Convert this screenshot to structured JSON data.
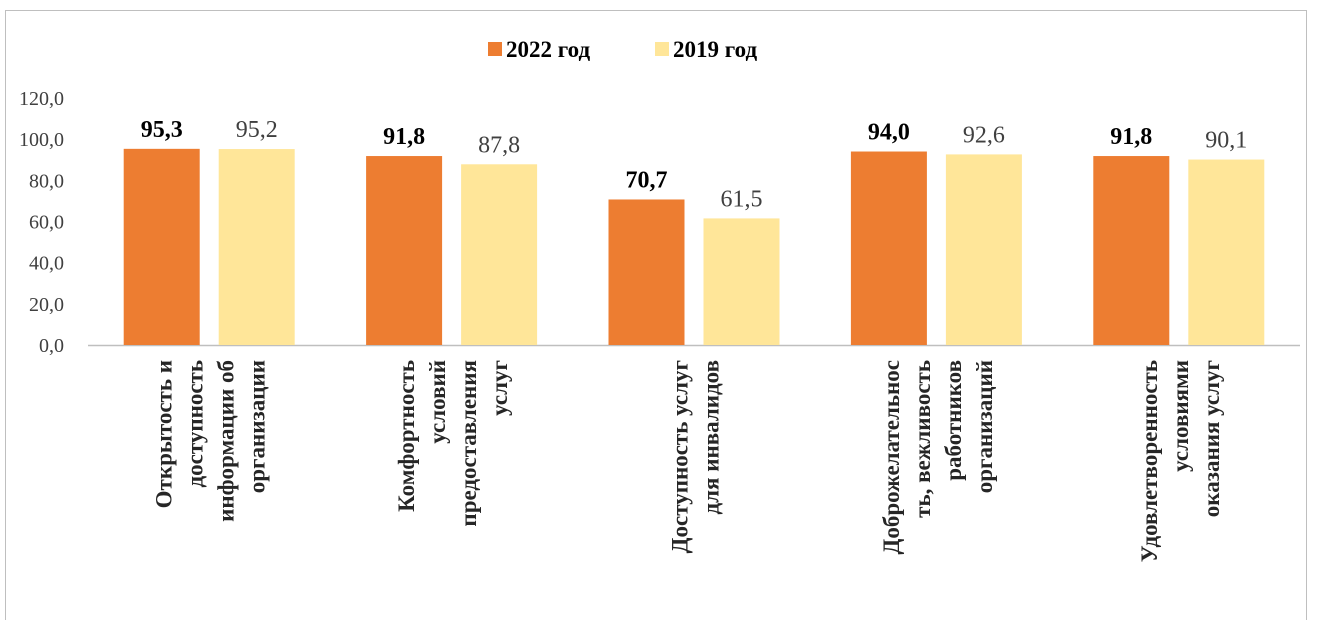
{
  "chart_data": {
    "type": "bar",
    "title": "",
    "xlabel": "",
    "ylabel": "",
    "ylim": [
      0,
      120
    ],
    "yticks": [
      "0,0",
      "20,0",
      "40,0",
      "60,0",
      "80,0",
      "100,0",
      "120,0"
    ],
    "ytick_values": [
      0,
      20,
      40,
      60,
      80,
      100,
      120
    ],
    "grid": false,
    "legend_position": "top-center",
    "categories": [
      [
        "Открытость и",
        "доступность",
        "информации об",
        "организации"
      ],
      [
        "Комфортность",
        "условий",
        "предоставления",
        "услуг"
      ],
      [
        "Доступность услуг",
        "для инвалидов"
      ],
      [
        "Доброжелательнос",
        "ть, вежливость",
        "работников",
        "организаций"
      ],
      [
        "Удовлетворенность",
        "условиями",
        "оказания услуг"
      ]
    ],
    "series": [
      {
        "name": "2022 год",
        "color": "#ed7d31",
        "values": [
          95.3,
          91.8,
          70.7,
          94.0,
          91.8
        ],
        "labels": [
          "95,3",
          "91,8",
          "70,7",
          "94,0",
          "91,8"
        ]
      },
      {
        "name": "2019 год",
        "color": "#ffe699",
        "values": [
          95.2,
          87.8,
          61.5,
          92.6,
          90.1
        ],
        "labels": [
          "95,2",
          "87,8",
          "61,5",
          "92,6",
          "90,1"
        ]
      }
    ]
  }
}
